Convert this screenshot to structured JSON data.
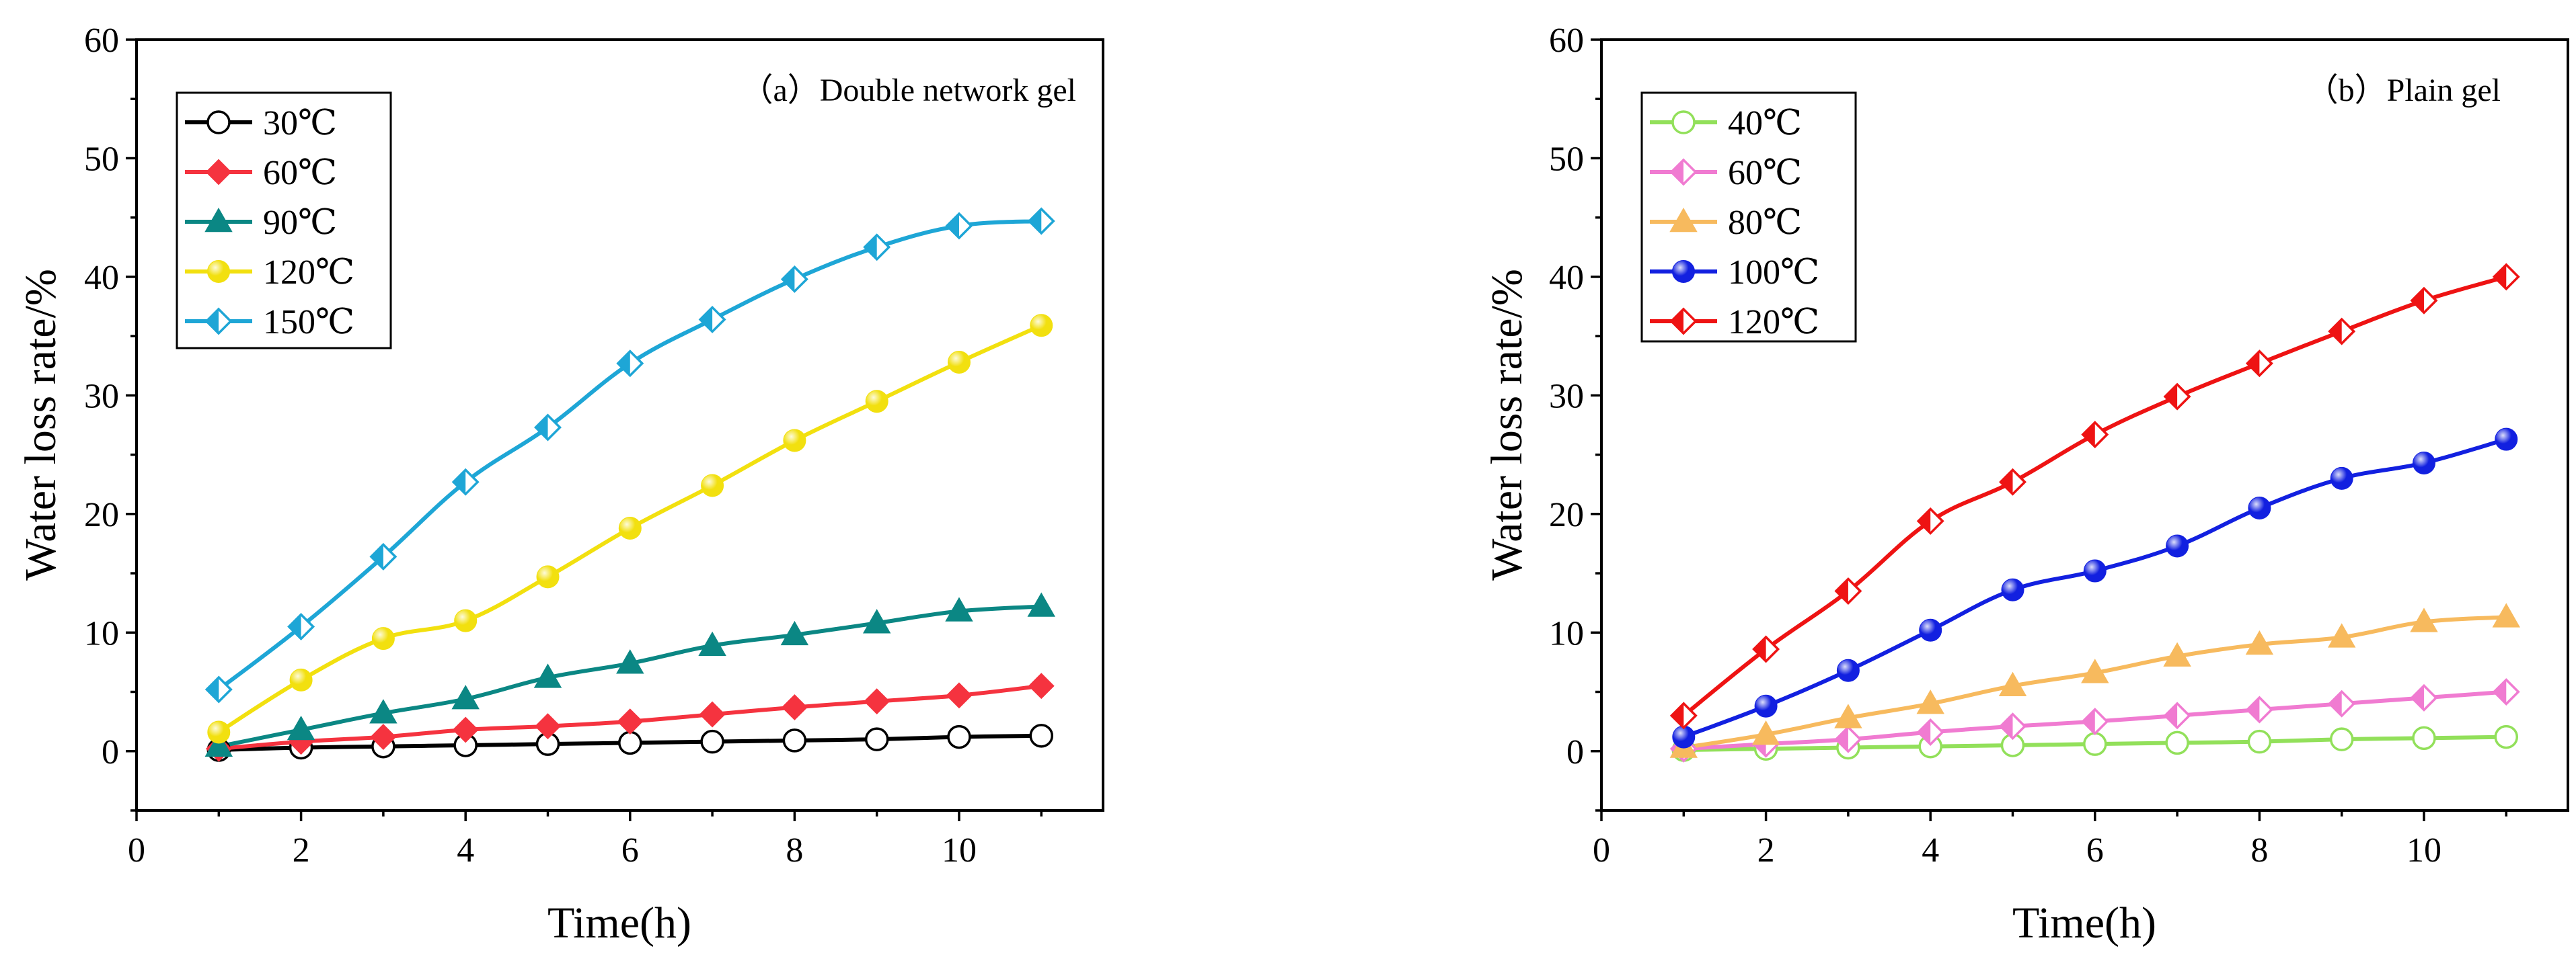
{
  "chart_data": [
    {
      "type": "line",
      "title": "（a）Double network gel",
      "xlabel": "Time(h)",
      "ylabel": "Water loss rate/%",
      "xlim": [
        0,
        11.75
      ],
      "ylim": [
        -5,
        60
      ],
      "xticks": [
        0,
        2,
        4,
        6,
        8,
        10
      ],
      "yticks": [
        0,
        10,
        20,
        30,
        40,
        50,
        60
      ],
      "legend_position": "top-left",
      "x": [
        1,
        2,
        3,
        4,
        5,
        6,
        7,
        8,
        9,
        10,
        11
      ],
      "series": [
        {
          "name": "30℃",
          "color": "#000000",
          "marker": "circle-open",
          "values": [
            0.1,
            0.3,
            0.4,
            0.5,
            0.6,
            0.7,
            0.8,
            0.9,
            1.0,
            1.2,
            1.3
          ]
        },
        {
          "name": "60℃",
          "color": "#f5333f",
          "marker": "diamond",
          "values": [
            0.2,
            0.8,
            1.2,
            1.8,
            2.1,
            2.5,
            3.1,
            3.7,
            4.2,
            4.7,
            5.5
          ]
        },
        {
          "name": "90℃",
          "color": "#0b8784",
          "marker": "triangle",
          "values": [
            0.4,
            1.8,
            3.2,
            4.4,
            6.2,
            7.4,
            8.9,
            9.8,
            10.8,
            11.8,
            12.2
          ]
        },
        {
          "name": "120℃",
          "color": "#f2e00f",
          "marker": "circle-ball",
          "values": [
            1.6,
            6.0,
            9.5,
            11.0,
            14.7,
            18.8,
            22.4,
            26.2,
            29.5,
            32.8,
            35.9
          ]
        },
        {
          "name": "150℃",
          "color": "#1ea6d6",
          "marker": "diamond-half",
          "values": [
            5.2,
            10.5,
            16.4,
            22.7,
            27.3,
            32.7,
            36.4,
            39.8,
            42.5,
            44.3,
            44.7
          ]
        }
      ]
    },
    {
      "type": "line",
      "title": "（b）Plain gel",
      "xlabel": "Time(h)",
      "ylabel": "Water loss rate/%",
      "xlim": [
        0,
        11.75
      ],
      "ylim": [
        -5,
        60
      ],
      "xticks": [
        0,
        2,
        4,
        6,
        8,
        10
      ],
      "yticks": [
        0,
        10,
        20,
        30,
        40,
        50,
        60
      ],
      "legend_position": "top-left",
      "x": [
        1,
        2,
        3,
        4,
        5,
        6,
        7,
        8,
        9,
        10,
        11
      ],
      "series": [
        {
          "name": "40℃",
          "color": "#92e05a",
          "marker": "circle-open",
          "values": [
            0.1,
            0.2,
            0.3,
            0.4,
            0.5,
            0.6,
            0.7,
            0.8,
            1.0,
            1.1,
            1.2
          ]
        },
        {
          "name": "60℃",
          "color": "#f07bd1",
          "marker": "diamond-half",
          "values": [
            0.2,
            0.6,
            1.0,
            1.6,
            2.1,
            2.5,
            3.0,
            3.5,
            4.0,
            4.5,
            5.0
          ]
        },
        {
          "name": "80℃",
          "color": "#f7ba5e",
          "marker": "triangle",
          "values": [
            0.3,
            1.4,
            2.8,
            4.0,
            5.5,
            6.6,
            8.0,
            9.0,
            9.6,
            10.9,
            11.3
          ]
        },
        {
          "name": "100℃",
          "color": "#1220e0",
          "marker": "circle-ball",
          "values": [
            1.2,
            3.8,
            6.8,
            10.2,
            13.6,
            15.2,
            17.3,
            20.5,
            23.0,
            24.3,
            26.3
          ]
        },
        {
          "name": "120℃",
          "color": "#ee1313",
          "marker": "diamond-half",
          "values": [
            3.0,
            8.6,
            13.5,
            19.4,
            22.7,
            26.7,
            29.9,
            32.7,
            35.4,
            38.0,
            40.0
          ]
        }
      ]
    }
  ]
}
